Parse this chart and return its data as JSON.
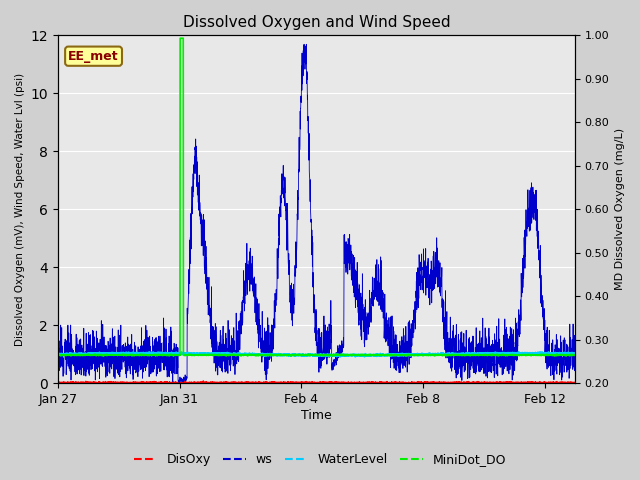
{
  "title": "Dissolved Oxygen and Wind Speed",
  "ylabel_left": "Dissolved Oxygen (mV), Wind Speed, Water Lvl (psi)",
  "ylabel_right": "MD Dissolved Oxygen (mg/L)",
  "xlabel": "Time",
  "ylim_left": [
    0,
    12
  ],
  "ylim_right": [
    0.2,
    1.0
  ],
  "yticks_left": [
    0,
    2,
    4,
    6,
    8,
    10,
    12
  ],
  "yticks_right": [
    0.2,
    0.3,
    0.4,
    0.5,
    0.6,
    0.7,
    0.8,
    0.9,
    1.0
  ],
  "xtick_labels": [
    "Jan 27",
    "Jan 31",
    "Feb 4",
    "Feb 8",
    "Feb 12"
  ],
  "xtick_positions": [
    0,
    4,
    8,
    12,
    16
  ],
  "xlim": [
    0,
    17
  ],
  "annotation_text": "EE_met",
  "fig_bg_color": "#d0d0d0",
  "plot_bg_color": "#e8e8e8",
  "colors": {
    "DisOxy": "#ff0000",
    "ws": "#0000cc",
    "WaterLevel": "#00ccff",
    "MiniDot_DO": "#00ee00"
  },
  "seed": 42
}
